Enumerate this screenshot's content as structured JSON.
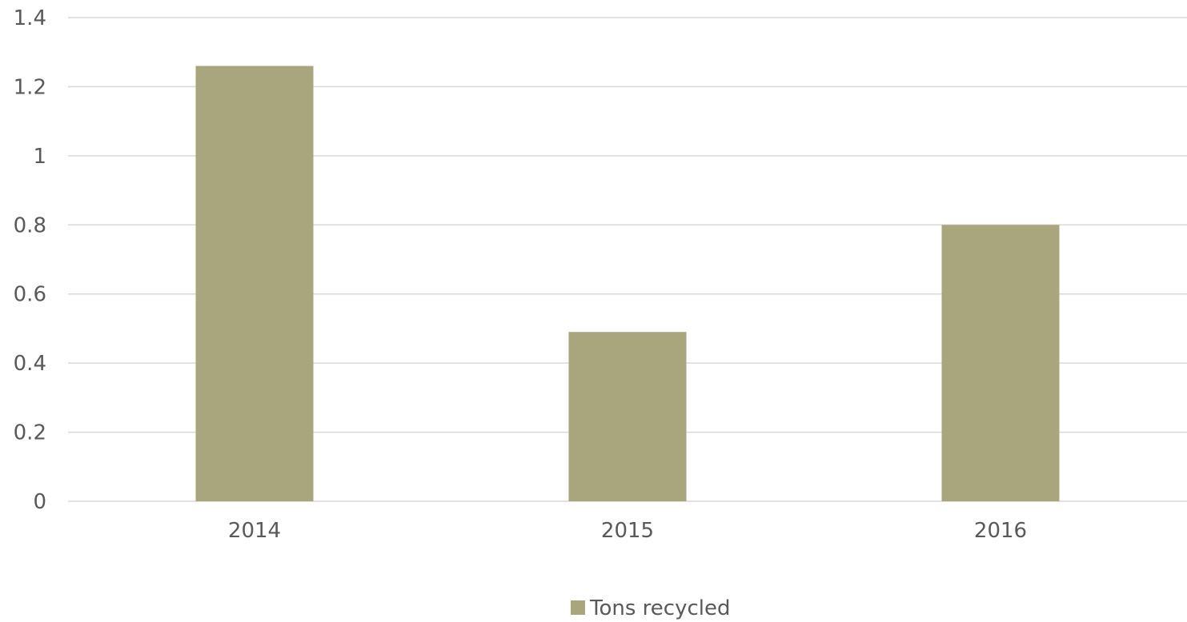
{
  "chart_data": {
    "type": "bar",
    "categories": [
      "2014",
      "2015",
      "2016"
    ],
    "series": [
      {
        "name": "Tons recycled",
        "values": [
          1.26,
          0.49,
          0.8
        ],
        "color": "#a9a57c"
      }
    ],
    "ylim": [
      0,
      1.4
    ],
    "yticks": [
      "0",
      "0.2",
      "0.4",
      "0.6",
      "0.8",
      "1",
      "1.2",
      "1.4"
    ],
    "grid": true,
    "legend_position": "bottom",
    "gridline_color": "#d9d9d9",
    "text_color": "#595959"
  }
}
